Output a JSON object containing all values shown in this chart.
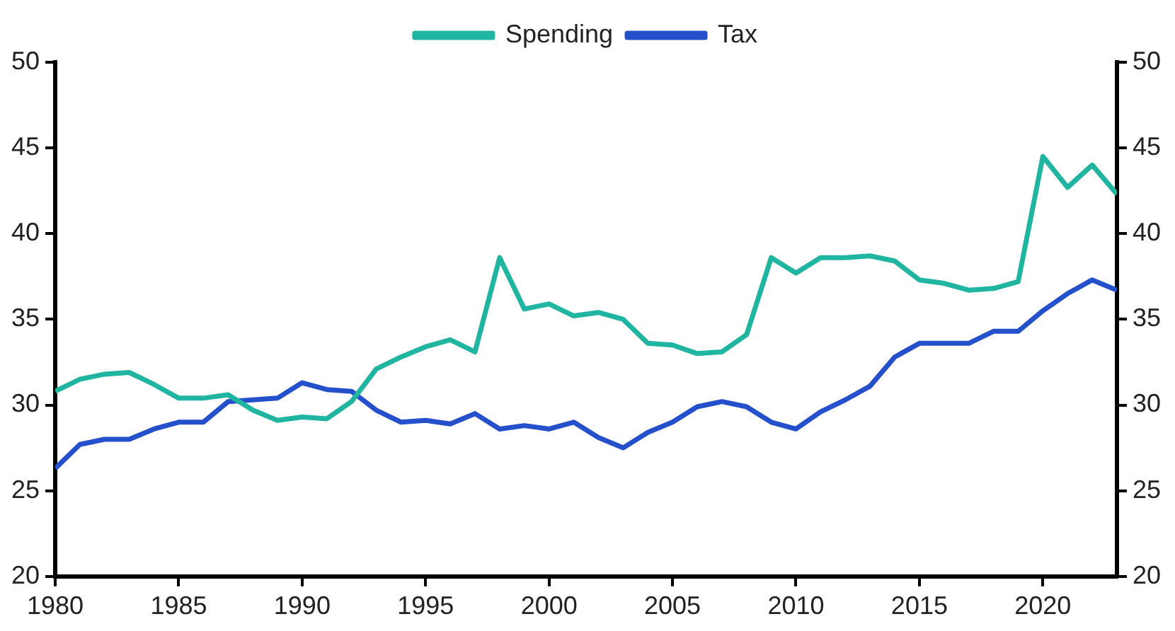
{
  "chart_data": {
    "type": "line",
    "x": [
      1980,
      1981,
      1982,
      1983,
      1984,
      1985,
      1986,
      1987,
      1988,
      1989,
      1990,
      1991,
      1992,
      1993,
      1994,
      1995,
      1996,
      1997,
      1998,
      1999,
      2000,
      2001,
      2002,
      2003,
      2004,
      2005,
      2006,
      2007,
      2008,
      2009,
      2010,
      2011,
      2012,
      2013,
      2014,
      2015,
      2016,
      2017,
      2018,
      2019,
      2020,
      2021,
      2022,
      2023
    ],
    "series": [
      {
        "name": "Spending",
        "color": "#1fb5a0",
        "values": [
          30.8,
          31.5,
          31.8,
          31.9,
          31.2,
          30.4,
          30.4,
          30.6,
          29.7,
          29.1,
          29.3,
          29.2,
          30.2,
          32.1,
          32.8,
          33.4,
          33.8,
          33.1,
          38.6,
          35.6,
          35.9,
          35.2,
          35.4,
          35.0,
          33.6,
          33.5,
          33.0,
          33.1,
          34.1,
          38.6,
          37.7,
          38.6,
          38.6,
          38.7,
          38.4,
          37.3,
          37.1,
          36.7,
          36.8,
          37.2,
          44.5,
          42.7,
          44.0,
          42.3
        ]
      },
      {
        "name": "Tax",
        "color": "#2550cc",
        "values": [
          26.3,
          27.7,
          28.0,
          28.0,
          28.6,
          29.0,
          29.0,
          30.2,
          30.3,
          30.4,
          31.3,
          30.9,
          30.8,
          29.7,
          29.0,
          29.1,
          28.9,
          29.5,
          28.6,
          28.8,
          28.6,
          29.0,
          28.1,
          27.5,
          28.4,
          29.0,
          29.9,
          30.2,
          29.9,
          29.0,
          28.6,
          29.6,
          30.3,
          31.1,
          32.8,
          33.6,
          33.6,
          33.6,
          34.3,
          34.3,
          35.5,
          36.5,
          37.3,
          36.7
        ]
      }
    ],
    "xlim": [
      1980,
      2023
    ],
    "xticks": [
      1980,
      1985,
      1990,
      1995,
      2000,
      2005,
      2010,
      2015,
      2020
    ],
    "ylim": [
      20,
      50
    ],
    "yticks": [
      20,
      25,
      30,
      35,
      40,
      45,
      50
    ],
    "y2lim": [
      20,
      50
    ],
    "y2ticks": [
      20,
      25,
      30,
      35,
      40,
      45,
      50
    ],
    "grid": false,
    "legend": "top",
    "marker": "none",
    "line_style": "solid"
  }
}
